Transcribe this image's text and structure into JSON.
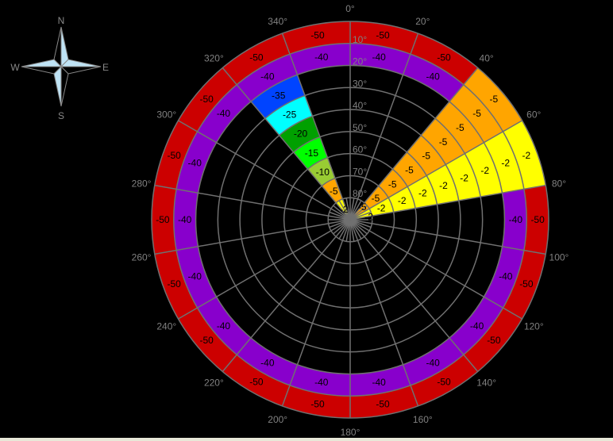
{
  "compass": {
    "north": "N",
    "east": "E",
    "south": "S",
    "west": "W"
  },
  "chart_data": {
    "type": "heatmap",
    "projection": "polar",
    "azimuth_ticks": [
      "0°",
      "20°",
      "40°",
      "60°",
      "80°",
      "100°",
      "120°",
      "140°",
      "160°",
      "180°",
      "200°",
      "220°",
      "240°",
      "260°",
      "280°",
      "300°",
      "320°",
      "340°"
    ],
    "elevation_ticks": [
      "10°",
      "20°",
      "30°",
      "40°",
      "50°",
      "60°",
      "70°",
      "80°"
    ],
    "azimuth_step": 20,
    "elevation_bands": [
      [
        0,
        10
      ],
      [
        10,
        20
      ],
      [
        20,
        30
      ],
      [
        30,
        40
      ],
      [
        40,
        50
      ],
      [
        50,
        60
      ],
      [
        60,
        70
      ],
      [
        70,
        80
      ],
      [
        80,
        90
      ]
    ],
    "default_values": [
      -50,
      -40,
      null,
      null,
      null,
      null,
      null,
      null,
      null
    ],
    "sectors": [
      {
        "azimuth": [
          40,
          60
        ],
        "values": [
          -5,
          -5,
          -5,
          -5,
          -5,
          -5,
          -5,
          -5,
          -5
        ]
      },
      {
        "azimuth": [
          60,
          80
        ],
        "values": [
          -2,
          -2,
          -2,
          -2,
          -2,
          -2,
          -2,
          -2,
          -2
        ]
      },
      {
        "azimuth": [
          320,
          340
        ],
        "values": [
          -50,
          -40,
          -35,
          -25,
          -20,
          -15,
          -10,
          -5,
          -2
        ]
      }
    ],
    "color_scale": {
      "-50": "#cc0000",
      "-40": "#8800cc",
      "-35": "#0044ff",
      "-25": "#00ffff",
      "-20": "#00a000",
      "-15": "#00ff00",
      "-10": "#99cc33",
      "-5": "#ffa500",
      "-2": "#ffff00"
    },
    "grid": true
  }
}
